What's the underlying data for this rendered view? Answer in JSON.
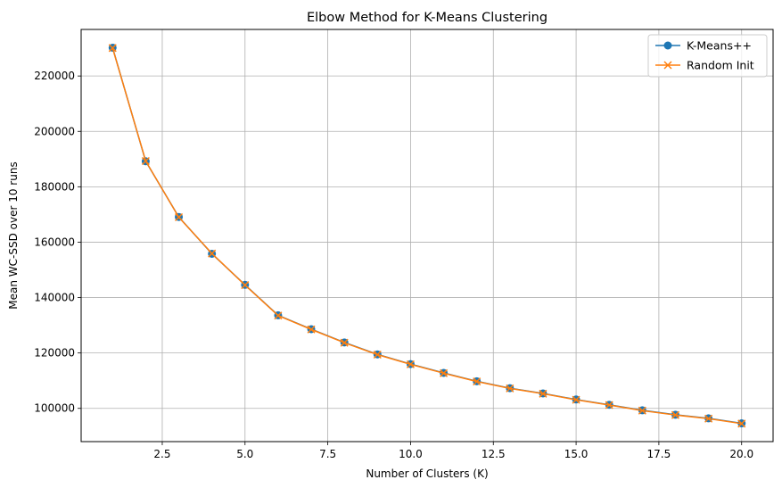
{
  "chart_data": {
    "type": "line",
    "title": "Elbow Method for K-Means Clustering",
    "xlabel": "Number of Clusters (K)",
    "ylabel": "Mean WC-SSD over 10 runs",
    "xlim": [
      0.05,
      20.95
    ],
    "ylim": [
      88000,
      236800
    ],
    "x": [
      1,
      2,
      3,
      4,
      5,
      6,
      7,
      8,
      9,
      10,
      11,
      12,
      13,
      14,
      15,
      16,
      17,
      18,
      19,
      20
    ],
    "xticks": [
      2.5,
      5.0,
      7.5,
      10.0,
      12.5,
      15.0,
      17.5,
      20.0
    ],
    "xtick_labels": [
      "2.5",
      "5.0",
      "7.5",
      "10.0",
      "12.5",
      "15.0",
      "17.5",
      "20.0"
    ],
    "yticks": [
      100000,
      120000,
      140000,
      160000,
      180000,
      200000,
      220000
    ],
    "ytick_labels": [
      "100000",
      "120000",
      "140000",
      "160000",
      "180000",
      "200000",
      "220000"
    ],
    "grid": true,
    "legend_position": "top-right",
    "series": [
      {
        "name": "K-Means++",
        "color": "#1f77b4",
        "marker": "circle",
        "values": [
          230200,
          189200,
          169100,
          155800,
          144600,
          133600,
          128600,
          123800,
          119500,
          116000,
          112800,
          109800,
          107300,
          105400,
          103200,
          101300,
          99300,
          97700,
          96400,
          94600
        ]
      },
      {
        "name": "Random Init",
        "color": "#ff7f0e",
        "marker": "x",
        "values": [
          230100,
          189300,
          169000,
          155900,
          144500,
          133500,
          128500,
          123700,
          119400,
          115900,
          112700,
          109700,
          107200,
          105300,
          103100,
          101200,
          99200,
          97600,
          96300,
          94500
        ]
      }
    ]
  }
}
